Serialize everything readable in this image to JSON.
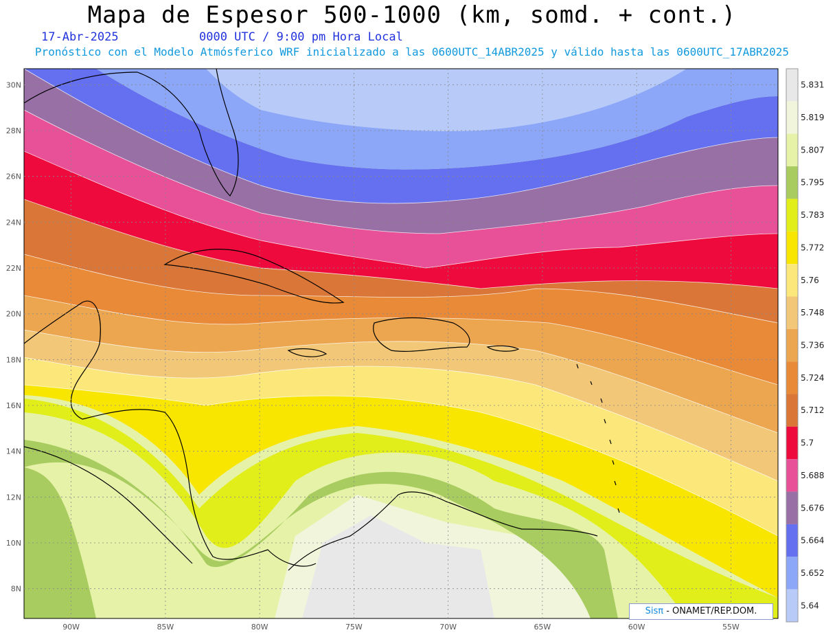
{
  "header": {
    "title": "Mapa de Espesor 500-1000 (km, somd. + cont.)",
    "date": "17-Abr-2025",
    "time": "0000 UTC / 9:00 pm Hora Local",
    "subtitle": "Pronóstico con el Modelo Atmósferico WRF inicializado a las 0600UTC_14ABR2025 y válido hasta las  0600UTC_17ABR2025"
  },
  "map": {
    "lon_range": [
      -92.5,
      -52.5
    ],
    "lat_range": [
      6.7,
      30.7
    ],
    "lat_ticks": [
      "30N",
      "28N",
      "26N",
      "24N",
      "22N",
      "20N",
      "18N",
      "16N",
      "14N",
      "12N",
      "10N",
      "8N"
    ],
    "lon_ticks": [
      "90W",
      "85W",
      "80W",
      "75W",
      "70W",
      "65W",
      "60W",
      "55W"
    ]
  },
  "colorbar": {
    "labels": [
      "5.831",
      "5.819",
      "5.807",
      "5.795",
      "5.783",
      "5.772",
      "5.76",
      "5.748",
      "5.736",
      "5.724",
      "5.712",
      "5.7",
      "5.688",
      "5.676",
      "5.664",
      "5.652",
      "5.64"
    ],
    "colors": [
      "#e8e8e8",
      "#f0f5dc",
      "#e6f2a8",
      "#a8cc60",
      "#e2ee1a",
      "#f9e600",
      "#fce87a",
      "#f2c878",
      "#eca650",
      "#e88a38",
      "#d97638",
      "#ee0a3c",
      "#e85098",
      "#9870a6",
      "#6470f0",
      "#8ca6f8",
      "#b8caf8"
    ]
  },
  "credit": {
    "sis": "Sisπ",
    "text": " - ONAMET/REP.DOM."
  }
}
